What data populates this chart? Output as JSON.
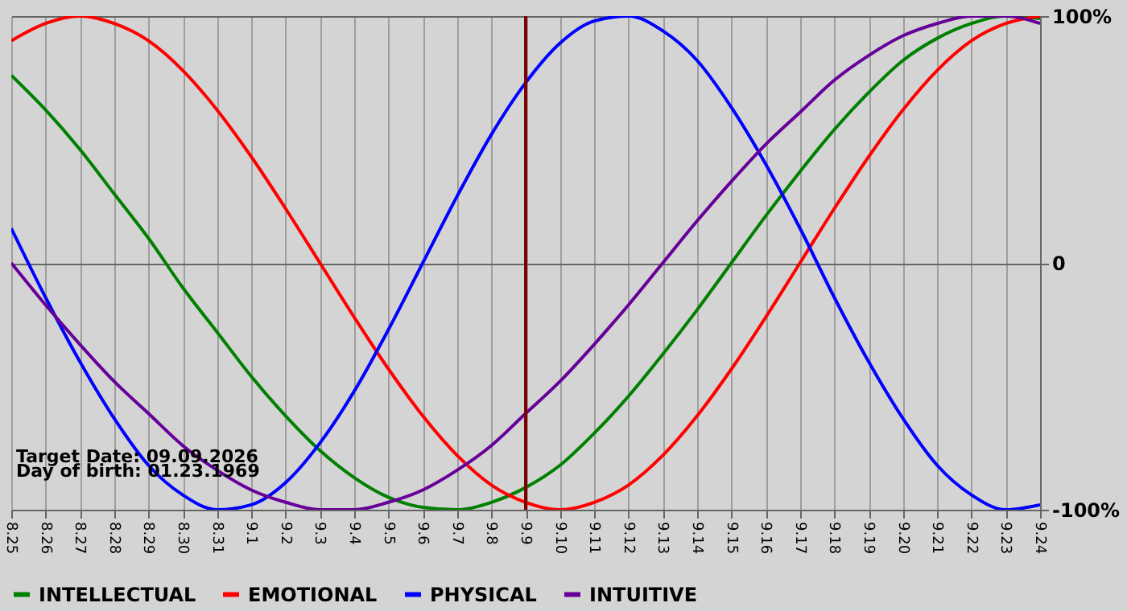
{
  "chart_data": {
    "type": "line",
    "categories": [
      "8.25",
      "8.26",
      "8.27",
      "8.28",
      "8.29",
      "8.30",
      "8.31",
      "9.1",
      "9.2",
      "9.3",
      "9.4",
      "9.5",
      "9.6",
      "9.7",
      "9.8",
      "9.9",
      "9.10",
      "9.11",
      "9.12",
      "9.13",
      "9.14",
      "9.15",
      "9.16",
      "9.17",
      "9.18",
      "9.19",
      "9.20",
      "9.21",
      "9.22",
      "9.23",
      "9.24"
    ],
    "series": [
      {
        "name": "INTELLECTUAL",
        "color": "#008000",
        "values": [
          76,
          62,
          46,
          28,
          10,
          -10,
          -28,
          -46,
          -62,
          -76,
          -87,
          -95,
          -99,
          -100,
          -97,
          -91,
          -82,
          -69,
          -54,
          -37,
          -19,
          0,
          19,
          37,
          54,
          69,
          82,
          91,
          97,
          100,
          99
        ]
      },
      {
        "name": "EMOTIONAL",
        "color": "#ff0000",
        "values": [
          90,
          97,
          100,
          97,
          90,
          78,
          62,
          43,
          22,
          0,
          -22,
          -43,
          -62,
          -78,
          -90,
          -97,
          -100,
          -97,
          -90,
          -78,
          -62,
          -43,
          -22,
          0,
          22,
          43,
          62,
          78,
          90,
          97,
          100
        ]
      },
      {
        "name": "PHYSICAL",
        "color": "#0000ff",
        "values": [
          14,
          -14,
          -40,
          -63,
          -82,
          -94,
          -100,
          -98,
          -89,
          -73,
          -52,
          -27,
          0,
          27,
          52,
          73,
          89,
          98,
          100,
          94,
          82,
          63,
          40,
          14,
          -14,
          -40,
          -63,
          -82,
          -94,
          -100,
          -98
        ]
      },
      {
        "name": "INTUITIVE",
        "color": "#660099",
        "values": [
          0,
          -17,
          -33,
          -48,
          -61,
          -74,
          -84,
          -92,
          -97,
          -100,
          -100,
          -97,
          -92,
          -84,
          -74,
          -61,
          -48,
          -33,
          -17,
          0,
          17,
          33,
          48,
          61,
          74,
          84,
          92,
          97,
          100,
          100,
          97
        ]
      }
    ],
    "ylim": [
      -100,
      100
    ],
    "yticks": [
      {
        "value": 100,
        "label": "100%"
      },
      0,
      {
        "value": -100,
        "label": "-100%"
      }
    ],
    "ref_lines": [
      {
        "axis": "x",
        "value": "9.9",
        "color": "#800000",
        "line_style": "solid"
      }
    ],
    "annotations": [
      "Target Date: 09.09.2026",
      "Day of birth: 01.23.1969"
    ],
    "grid": true,
    "legend": "bottom",
    "marker": "none",
    "line_style": "solid"
  }
}
